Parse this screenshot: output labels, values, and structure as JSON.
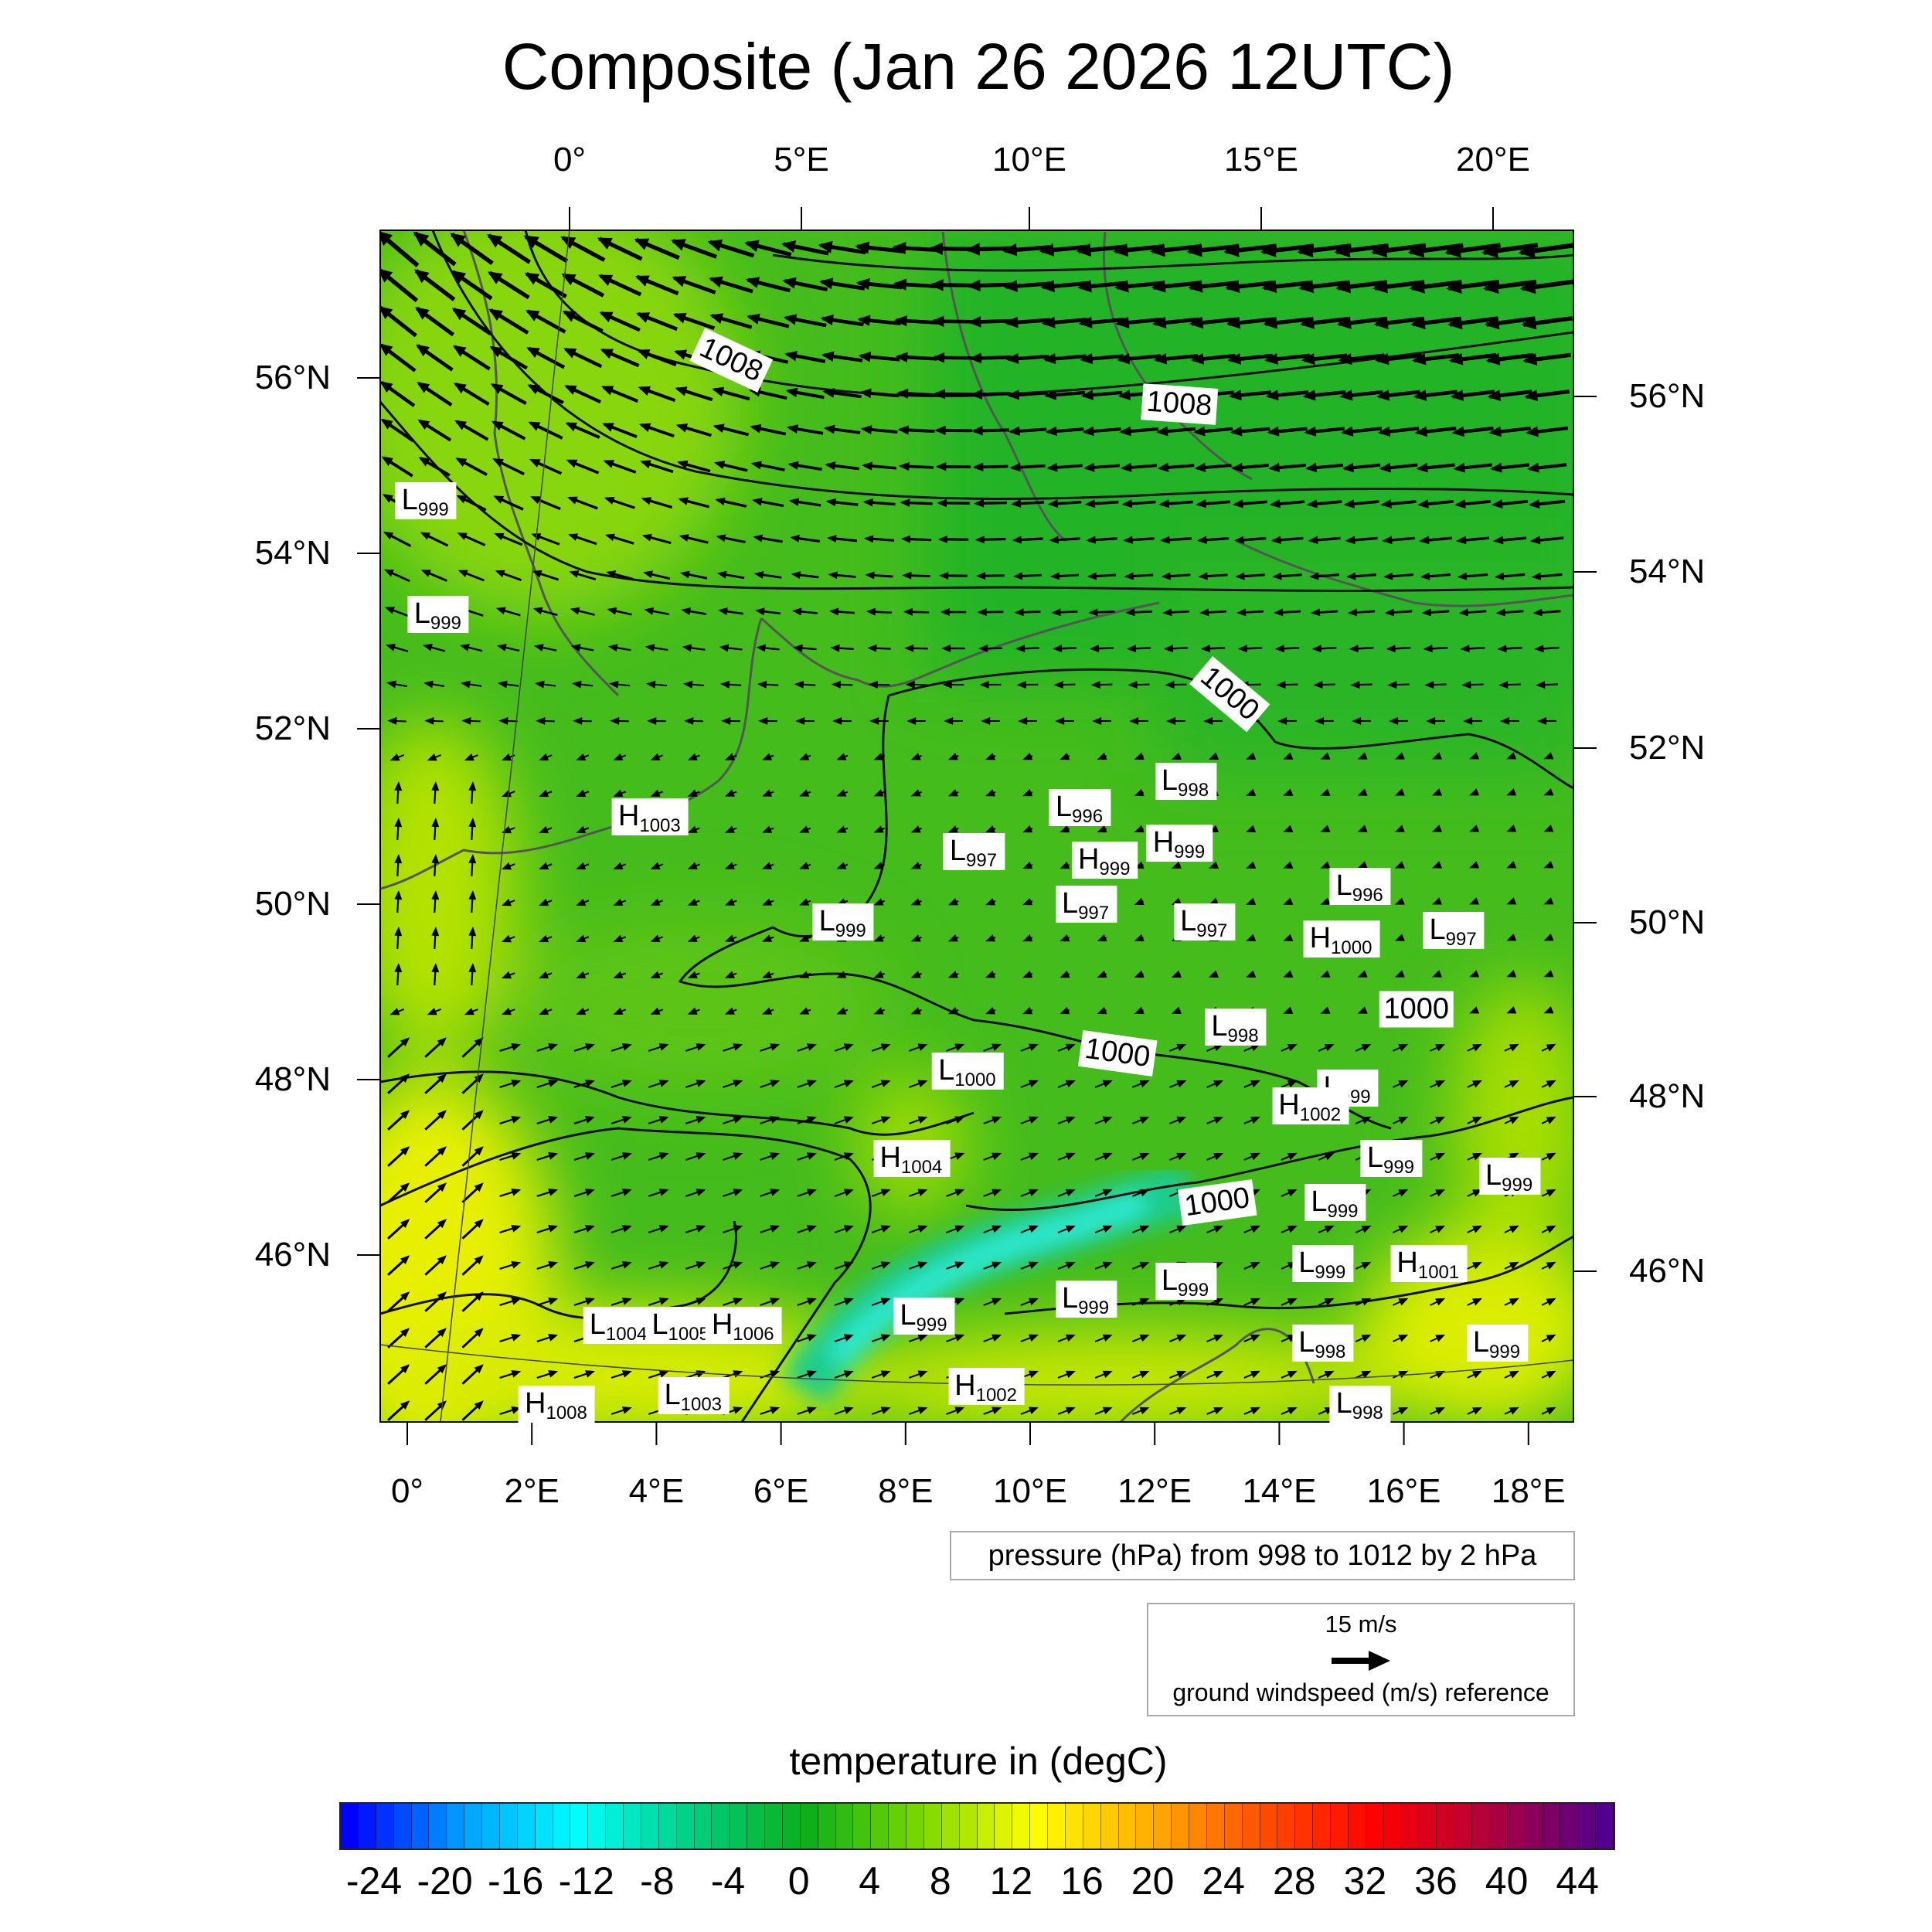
{
  "title": "Composite (Jan 26 2026 12UTC)",
  "axes": {
    "top_lon_labels": [
      {
        "lon": 0,
        "text": "0°"
      },
      {
        "lon": 5,
        "text": "5°E"
      },
      {
        "lon": 10,
        "text": "10°E"
      },
      {
        "lon": 15,
        "text": "15°E"
      },
      {
        "lon": 20,
        "text": "20°E"
      }
    ],
    "bottom_lon_labels": [
      {
        "lon": 0,
        "text": "0°"
      },
      {
        "lon": 2,
        "text": "2°E"
      },
      {
        "lon": 4,
        "text": "4°E"
      },
      {
        "lon": 6,
        "text": "6°E"
      },
      {
        "lon": 8,
        "text": "8°E"
      },
      {
        "lon": 10,
        "text": "10°E"
      },
      {
        "lon": 12,
        "text": "12°E"
      },
      {
        "lon": 14,
        "text": "14°E"
      },
      {
        "lon": 16,
        "text": "16°E"
      },
      {
        "lon": 18,
        "text": "18°E"
      }
    ],
    "left_lat_labels": [
      {
        "lat": 56,
        "text": "56°N"
      },
      {
        "lat": 54,
        "text": "54°N"
      },
      {
        "lat": 52,
        "text": "52°N"
      },
      {
        "lat": 50,
        "text": "50°N"
      },
      {
        "lat": 48,
        "text": "48°N"
      },
      {
        "lat": 46,
        "text": "46°N"
      }
    ],
    "right_lat_labels": [
      {
        "lat": 56,
        "text": "56°N"
      },
      {
        "lat": 54,
        "text": "54°N"
      },
      {
        "lat": 52,
        "text": "52°N"
      },
      {
        "lat": 50,
        "text": "50°N"
      },
      {
        "lat": 48,
        "text": "48°N"
      },
      {
        "lat": 46,
        "text": "46°N"
      }
    ]
  },
  "pressure_centers": [
    {
      "type": "L",
      "value": "999",
      "lon": 0.3,
      "lat": 54.6
    },
    {
      "type": "L",
      "value": "999",
      "lon": 0.5,
      "lat": 53.3
    },
    {
      "type": "H",
      "value": "1003",
      "lon": 3.9,
      "lat": 51.0
    },
    {
      "type": "L",
      "value": "997",
      "lon": 9.1,
      "lat": 50.6
    },
    {
      "type": "L",
      "value": "996",
      "lon": 10.8,
      "lat": 51.1
    },
    {
      "type": "L",
      "value": "998",
      "lon": 12.5,
      "lat": 51.4
    },
    {
      "type": "H",
      "value": "999",
      "lon": 11.2,
      "lat": 50.5
    },
    {
      "type": "H",
      "value": "999",
      "lon": 12.4,
      "lat": 50.7
    },
    {
      "type": "L",
      "value": "997",
      "lon": 10.9,
      "lat": 50.0
    },
    {
      "type": "L",
      "value": "999",
      "lon": 7.0,
      "lat": 49.8
    },
    {
      "type": "L",
      "value": "997",
      "lon": 12.8,
      "lat": 49.8
    },
    {
      "type": "L",
      "value": "996",
      "lon": 15.3,
      "lat": 50.2
    },
    {
      "type": "H",
      "value": "1000",
      "lon": 15.0,
      "lat": 49.6
    },
    {
      "type": "L",
      "value": "997",
      "lon": 16.8,
      "lat": 49.7
    },
    {
      "type": "L",
      "value": "998",
      "lon": 13.3,
      "lat": 48.6
    },
    {
      "type": "L",
      "value": "1000",
      "lon": 9.0,
      "lat": 48.1
    },
    {
      "type": "L",
      "value": "999",
      "lon": 15.1,
      "lat": 47.9
    },
    {
      "type": "H",
      "value": "1002",
      "lon": 14.5,
      "lat": 47.7
    },
    {
      "type": "H",
      "value": "1004",
      "lon": 8.1,
      "lat": 47.1
    },
    {
      "type": "L",
      "value": "999",
      "lon": 15.8,
      "lat": 47.1
    },
    {
      "type": "L",
      "value": "999",
      "lon": 17.7,
      "lat": 46.9
    },
    {
      "type": "L",
      "value": "999",
      "lon": 14.9,
      "lat": 46.6
    },
    {
      "type": "L",
      "value": "999",
      "lon": 12.5,
      "lat": 45.7
    },
    {
      "type": "L",
      "value": "999",
      "lon": 14.7,
      "lat": 45.9
    },
    {
      "type": "H",
      "value": "1001",
      "lon": 16.4,
      "lat": 45.9
    },
    {
      "type": "L",
      "value": "999",
      "lon": 10.9,
      "lat": 45.5
    },
    {
      "type": "L",
      "value": "999",
      "lon": 8.3,
      "lat": 45.3
    },
    {
      "type": "L",
      "value": "1004",
      "lon": 3.4,
      "lat": 45.2
    },
    {
      "type": "L",
      "value": "1005",
      "lon": 4.4,
      "lat": 45.2
    },
    {
      "type": "H",
      "value": "1006",
      "lon": 5.4,
      "lat": 45.2
    },
    {
      "type": "L",
      "value": "998",
      "lon": 14.7,
      "lat": 45.0
    },
    {
      "type": "L",
      "value": "999",
      "lon": 17.5,
      "lat": 45.0
    },
    {
      "type": "L",
      "value": "1003",
      "lon": 4.6,
      "lat": 44.4
    },
    {
      "type": "H",
      "value": "1002",
      "lon": 9.3,
      "lat": 44.5
    },
    {
      "type": "H",
      "value": "1008",
      "lon": 2.4,
      "lat": 44.3
    },
    {
      "type": "L",
      "value": "998",
      "lon": 15.3,
      "lat": 44.3
    }
  ],
  "isobar_labels": [
    {
      "text": "1008",
      "lon": 5.2,
      "lat": 56.2,
      "angle": 25
    },
    {
      "text": "1008",
      "lon": 12.4,
      "lat": 55.7,
      "angle": 4
    },
    {
      "text": "1000",
      "lon": 13.2,
      "lat": 52.4,
      "angle": 40
    },
    {
      "text": "1000",
      "lon": 16.2,
      "lat": 48.8,
      "angle": 0
    },
    {
      "text": "1000",
      "lon": 11.4,
      "lat": 48.3,
      "angle": 8
    },
    {
      "text": "1000",
      "lon": 13.0,
      "lat": 46.6,
      "angle": -8
    }
  ],
  "pressure_legend": "pressure (hPa) from 998 to 1012 by 2 hPa",
  "wind_reference": {
    "speed_label": "15 m/s",
    "label": "ground windspeed (m/s) reference"
  },
  "colorbar": {
    "title": "temperature in (degC)",
    "min": -25,
    "max": 46,
    "segments": 72,
    "tick_labels": [
      "-24",
      "-20",
      "-16",
      "-12",
      "-8",
      "-4",
      "0",
      "4",
      "8",
      "12",
      "16",
      "20",
      "24",
      "28",
      "32",
      "36",
      "40",
      "44"
    ],
    "color_stops": [
      "#0000ff",
      "#00a0ff",
      "#00ffff",
      "#00d080",
      "#0cae1a",
      "#7ad800",
      "#ffff00",
      "#ffb000",
      "#ff5000",
      "#ff0000",
      "#b0003c",
      "#50008c"
    ]
  }
}
